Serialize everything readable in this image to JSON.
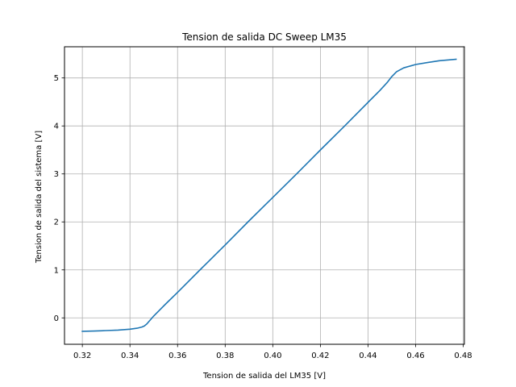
{
  "chart_data": {
    "type": "line",
    "title": "Tension de salida DC Sweep LM35",
    "xlabel": "Tension de salida del LM35 [V]",
    "ylabel": "Tension de salida del sistema [V]",
    "xlim": [
      0.3125,
      0.4805
    ],
    "ylim": [
      -0.55,
      5.65
    ],
    "xticks": [
      0.32,
      0.34,
      0.36,
      0.38,
      0.4,
      0.42,
      0.44,
      0.46,
      0.48
    ],
    "xtick_labels": [
      "0.32",
      "0.34",
      "0.36",
      "0.38",
      "0.40",
      "0.42",
      "0.44",
      "0.46",
      "0.48"
    ],
    "yticks": [
      0,
      1,
      2,
      3,
      4,
      5
    ],
    "ytick_labels": [
      "0",
      "1",
      "2",
      "3",
      "4",
      "5"
    ],
    "grid": true,
    "series": [
      {
        "color": "#1f77b4",
        "x": [
          0.32,
          0.325,
          0.33,
          0.335,
          0.34,
          0.343,
          0.345,
          0.346,
          0.347,
          0.35,
          0.355,
          0.36,
          0.37,
          0.38,
          0.39,
          0.4,
          0.41,
          0.42,
          0.43,
          0.44,
          0.445,
          0.448,
          0.45,
          0.452,
          0.455,
          0.46,
          0.465,
          0.47,
          0.477
        ],
        "y": [
          -0.28,
          -0.275,
          -0.265,
          -0.255,
          -0.235,
          -0.215,
          -0.19,
          -0.17,
          -0.13,
          0.04,
          0.29,
          0.53,
          1.03,
          1.52,
          2.02,
          2.51,
          3.0,
          3.5,
          3.99,
          4.49,
          4.74,
          4.9,
          5.03,
          5.13,
          5.21,
          5.28,
          5.32,
          5.36,
          5.39
        ]
      }
    ]
  }
}
